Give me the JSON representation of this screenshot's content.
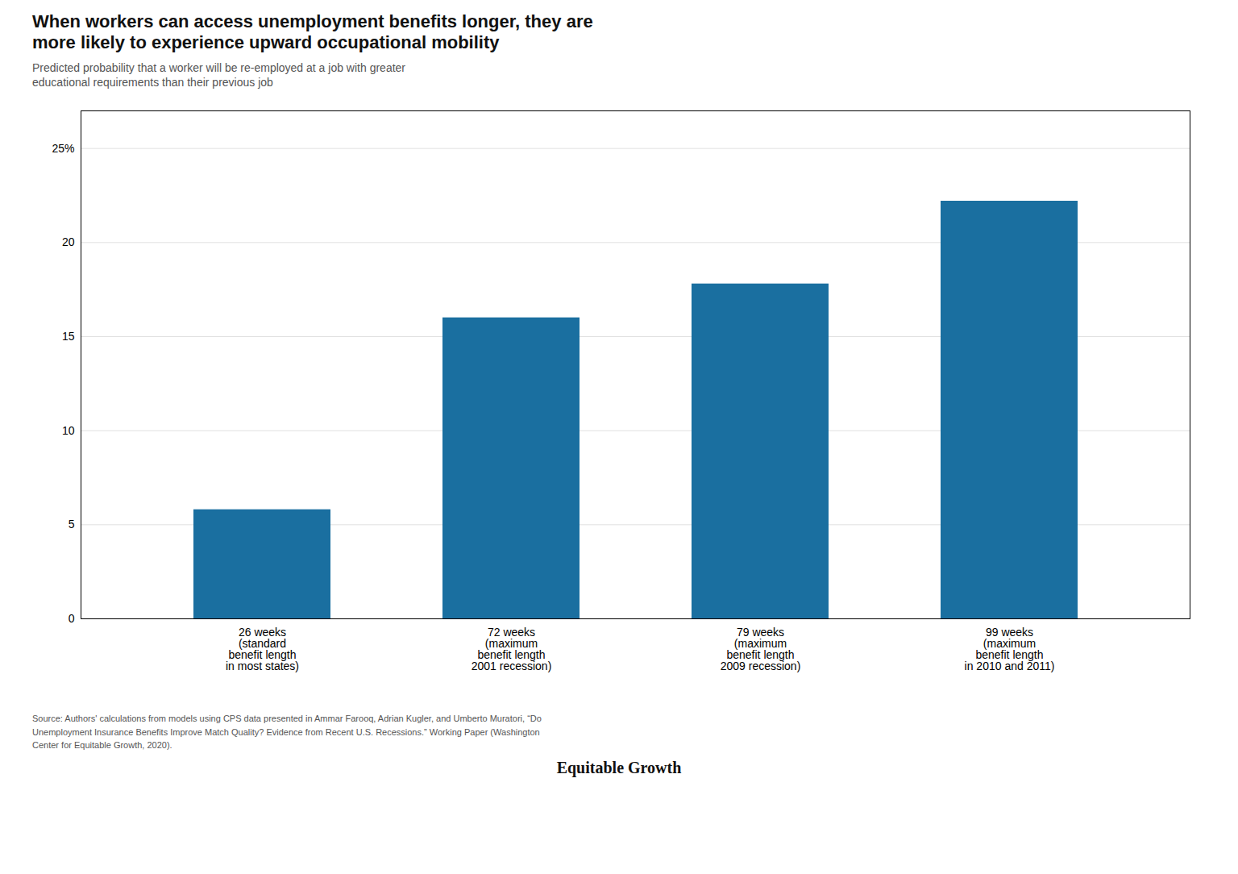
{
  "chart_data": {
    "type": "bar",
    "title": "When workers can access unemployment benefits longer, they are\nmore likely to experience upward occupational mobility",
    "subtitle": "Predicted probability that a worker will be re-employed at a job with greater\neducational requirements than their previous job",
    "categories": [
      "26 weeks\n(standard\nbenefit length\nin most states)",
      "72 weeks\n(maximum\nbenefit length\n2001 recession)",
      "79 weeks\n(maximum\nbenefit length\n2009 recession)",
      "99 weeks\n(maximum\nbenefit length\nin 2010 and 2011)"
    ],
    "values": [
      5.8,
      16.0,
      17.8,
      22.2
    ],
    "color": "#1a6fa0",
    "ylim": [
      0,
      27
    ],
    "yticks": [
      0,
      5,
      10,
      15,
      20,
      {
        "value": 25,
        "label": "25%"
      }
    ],
    "grid": true,
    "caption": "Source: Authors' calculations from models using CPS data presented in Ammar Farooq, Adrian Kugler, and Umberto Muratori, “Do\nUnemployment Insurance Benefits Improve Match Quality? Evidence from Recent U.S. Recessions.” Working Paper (Washington\nCenter for Equitable Growth, 2020).",
    "annotations": [
      "Equitable Growth"
    ]
  }
}
